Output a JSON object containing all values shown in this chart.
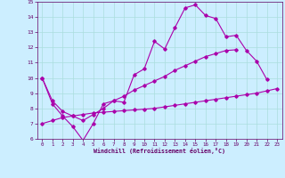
{
  "xlabel": "Windchill (Refroidissement éolien,°C)",
  "ylabel": "",
  "bg_color": "#cceeff",
  "line_color": "#aa00aa",
  "grid_color": "#aadddd",
  "xlim": [
    -0.5,
    23.5
  ],
  "ylim": [
    6,
    15
  ],
  "yticks": [
    6,
    7,
    8,
    9,
    10,
    11,
    12,
    13,
    14,
    15
  ],
  "xticks": [
    0,
    1,
    2,
    3,
    4,
    5,
    6,
    7,
    8,
    9,
    10,
    11,
    12,
    13,
    14,
    15,
    16,
    17,
    18,
    19,
    20,
    21,
    22,
    23
  ],
  "line1_y": [
    10.0,
    8.3,
    7.5,
    6.8,
    5.9,
    7.0,
    8.3,
    8.5,
    8.4,
    10.2,
    10.6,
    12.4,
    11.9,
    13.3,
    14.6,
    14.8,
    14.1,
    13.9,
    12.7,
    12.8,
    11.8,
    11.1,
    9.9,
    null
  ],
  "line2_y": [
    10.0,
    8.5,
    7.8,
    7.5,
    7.2,
    7.6,
    8.0,
    8.5,
    8.8,
    9.2,
    9.5,
    9.8,
    10.1,
    10.5,
    10.8,
    11.1,
    11.4,
    11.6,
    11.8,
    11.85,
    null,
    null,
    null,
    null
  ],
  "line3_y": [
    7.0,
    7.2,
    7.4,
    7.5,
    7.6,
    7.7,
    7.75,
    7.8,
    7.85,
    7.9,
    7.95,
    8.0,
    8.1,
    8.2,
    8.3,
    8.4,
    8.5,
    8.6,
    8.7,
    8.8,
    8.9,
    9.0,
    9.15,
    9.3
  ]
}
